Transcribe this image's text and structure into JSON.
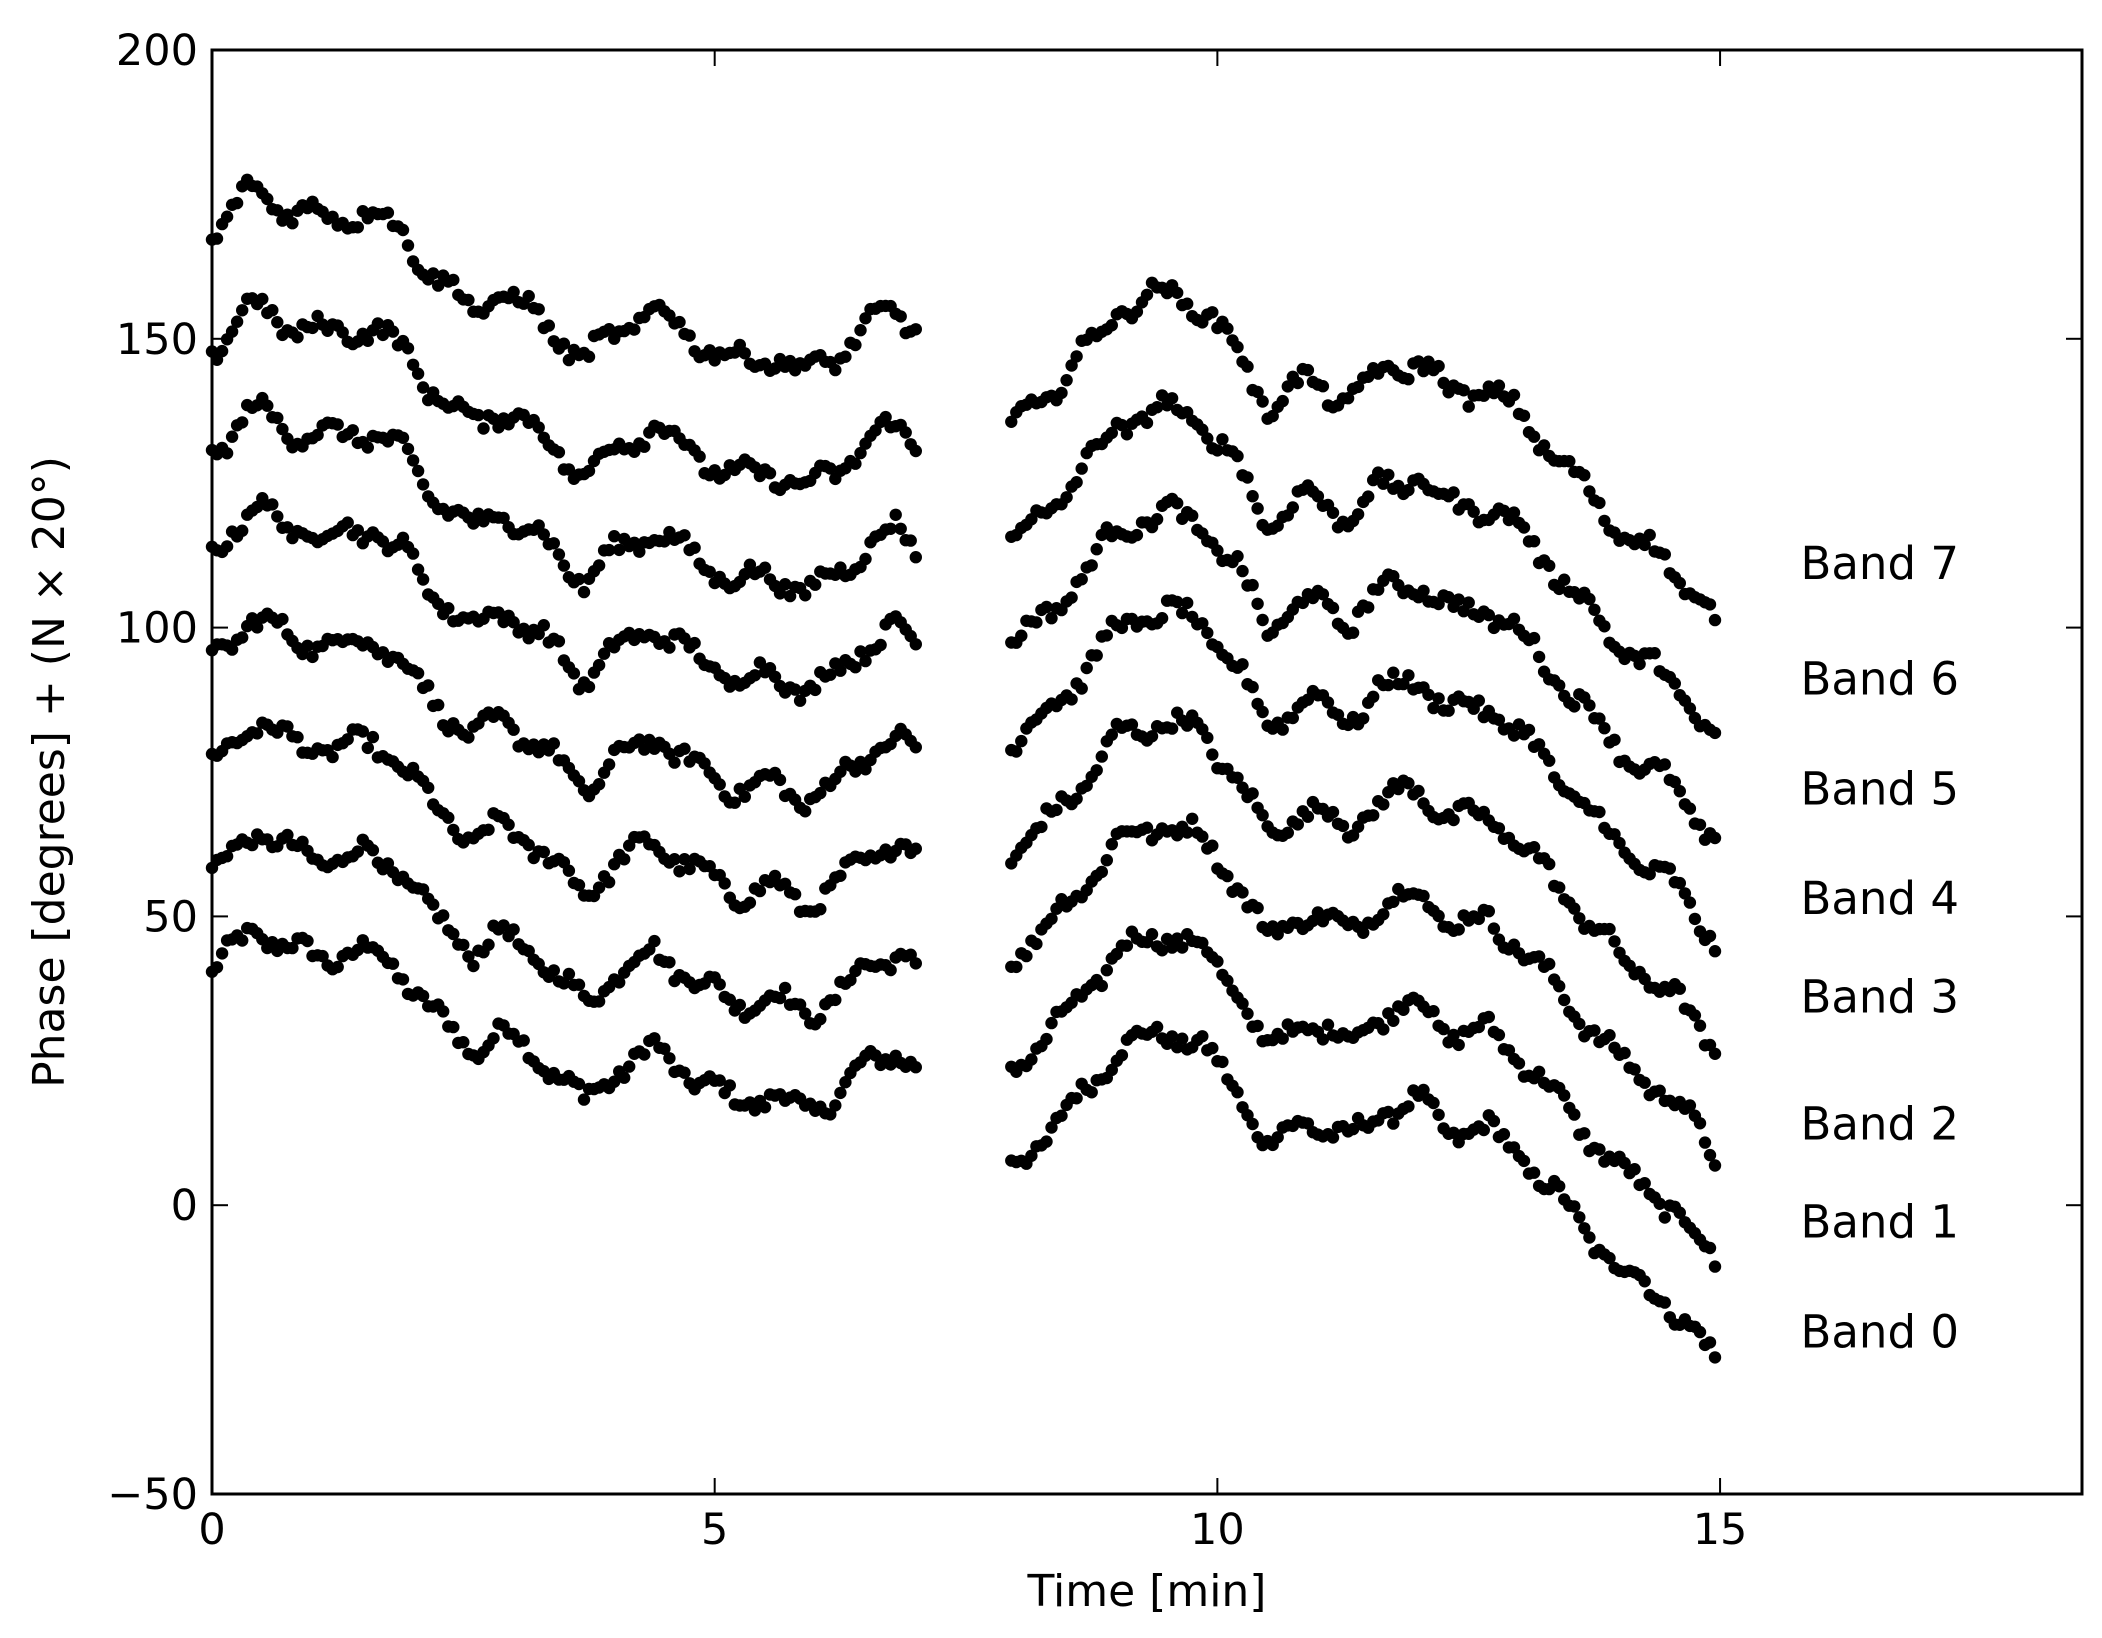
{
  "chart_data": {
    "type": "scatter",
    "title": "",
    "xlabel": "Time [min]",
    "ylabel": "Phase [degrees] + (N × 20°)",
    "xlim": [
      0,
      18.6
    ],
    "ylim": [
      -50,
      200
    ],
    "x_ticks": [
      {
        "value": 0,
        "label": "0"
      },
      {
        "value": 5,
        "label": "5"
      },
      {
        "value": 10,
        "label": "10"
      },
      {
        "value": 15,
        "label": "15"
      }
    ],
    "y_ticks": [
      {
        "value": -50,
        "label": "−50"
      },
      {
        "value": 0,
        "label": "0"
      },
      {
        "value": 50,
        "label": "50"
      },
      {
        "value": 100,
        "label": "100"
      },
      {
        "value": 150,
        "label": "150"
      },
      {
        "value": 200,
        "label": "200"
      }
    ],
    "grid": false,
    "marker_color": "#000000",
    "annotations": [
      {
        "text": "Band 7",
        "x": 15.8,
        "y": 111
      },
      {
        "text": "Band 6",
        "x": 15.8,
        "y": 91
      },
      {
        "text": "Band 5",
        "x": 15.8,
        "y": 72
      },
      {
        "text": "Band 4",
        "x": 15.8,
        "y": 53
      },
      {
        "text": "Band 3",
        "x": 15.8,
        "y": 36
      },
      {
        "text": "Band 2",
        "x": 15.8,
        "y": 14
      },
      {
        "text": "Band 1",
        "x": 15.8,
        "y": -3
      },
      {
        "text": "Band 0",
        "x": 15.8,
        "y": -22
      }
    ],
    "segments_x_range": [
      [
        0,
        7.0
      ],
      [
        7.95,
        14.95
      ]
    ],
    "base_curve": {
      "segment1": {
        "x": [
          0,
          0.4,
          0.8,
          1.2,
          1.6,
          1.9,
          2.2,
          2.6,
          2.9,
          3.3,
          3.7,
          4.0,
          4.4,
          4.8,
          5.2,
          5.6,
          5.9,
          6.2,
          6.5,
          6.8,
          7.0
        ],
        "y": [
          40,
          48,
          44,
          43,
          44,
          40,
          33,
          27,
          30,
          25,
          18,
          23,
          27,
          22,
          18,
          19,
          16,
          19,
          24,
          27,
          24
        ]
      },
      "segment2": {
        "x": [
          7.95,
          8.3,
          8.7,
          9.0,
          9.5,
          9.8,
          10.2,
          10.5,
          10.9,
          11.3,
          11.6,
          12.0,
          12.3,
          12.7,
          13.0,
          13.3,
          13.7,
          14.0,
          14.5,
          14.95
        ],
        "y": [
          7,
          12,
          20,
          27,
          30,
          28,
          20,
          10,
          15,
          11,
          16,
          18,
          13,
          13,
          9,
          3,
          -5,
          -11,
          -17,
          -27
        ]
      }
    },
    "series": [
      {
        "band": 0,
        "offset": 0
      },
      {
        "band": 1,
        "offset": 17
      },
      {
        "band": 2,
        "offset": 36
      },
      {
        "band": 3,
        "offset": 54
      },
      {
        "band": 4,
        "offset": 73
      },
      {
        "band": 5,
        "offset": 90
      },
      {
        "band": 6,
        "offset": 108
      },
      {
        "band": 7,
        "offset": 128
      }
    ]
  }
}
